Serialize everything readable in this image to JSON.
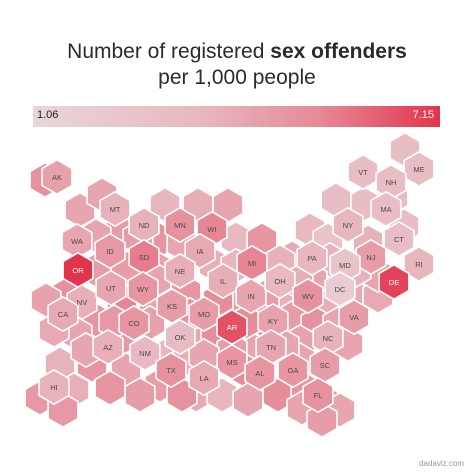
{
  "title": {
    "line1": "Number of registered",
    "line1_bold": "sex offenders",
    "line2": "per 1,000 people"
  },
  "legend": {
    "min": "1.06",
    "max": "7.15",
    "color_low": "#e9d6d9",
    "color_high": "#e3344d"
  },
  "credit": "dadaviz.com",
  "states": [
    {
      "code": "AK",
      "level": 0.33
    },
    {
      "code": "HI",
      "level": 0.22
    },
    {
      "code": "ME",
      "level": 0.15
    },
    {
      "code": "VT",
      "level": 0.15
    },
    {
      "code": "NH",
      "level": 0.15
    },
    {
      "code": "MT",
      "level": 0.22
    },
    {
      "code": "MA",
      "level": 0.15
    },
    {
      "code": "ND",
      "level": 0.22
    },
    {
      "code": "MN",
      "level": 0.42
    },
    {
      "code": "WI",
      "level": 0.5
    },
    {
      "code": "MI",
      "level": 0.5
    },
    {
      "code": "NY",
      "level": 0.2
    },
    {
      "code": "CT",
      "level": 0.15
    },
    {
      "code": "WA",
      "level": 0.3
    },
    {
      "code": "ID",
      "level": 0.38
    },
    {
      "code": "SD",
      "level": 0.55
    },
    {
      "code": "IA",
      "level": 0.28
    },
    {
      "code": "NJ",
      "level": 0.35
    },
    {
      "code": "PA",
      "level": 0.2
    },
    {
      "code": "RI",
      "level": 0.2
    },
    {
      "code": "OR",
      "level": 1.0
    },
    {
      "code": "WY",
      "level": 0.4
    },
    {
      "code": "NE",
      "level": 0.24
    },
    {
      "code": "IL",
      "level": 0.25
    },
    {
      "code": "IN",
      "level": 0.3
    },
    {
      "code": "OH",
      "level": 0.18
    },
    {
      "code": "MD",
      "level": 0.12
    },
    {
      "code": "DE",
      "level": 0.9
    },
    {
      "code": "NV",
      "level": 0.24
    },
    {
      "code": "UT",
      "level": 0.3
    },
    {
      "code": "KS",
      "level": 0.35
    },
    {
      "code": "MO",
      "level": 0.35
    },
    {
      "code": "KY",
      "level": 0.32
    },
    {
      "code": "WV",
      "level": 0.42
    },
    {
      "code": "DC",
      "level": 0.06
    },
    {
      "code": "CA",
      "level": 0.28
    },
    {
      "code": "CO",
      "level": 0.4
    },
    {
      "code": "OK",
      "level": 0.16
    },
    {
      "code": "AR",
      "level": 0.82
    },
    {
      "code": "TN",
      "level": 0.3
    },
    {
      "code": "VA",
      "level": 0.35
    },
    {
      "code": "AZ",
      "level": 0.24
    },
    {
      "code": "NM",
      "level": 0.18
    },
    {
      "code": "MS",
      "level": 0.4
    },
    {
      "code": "AL",
      "level": 0.4
    },
    {
      "code": "NC",
      "level": 0.22
    },
    {
      "code": "SC",
      "level": 0.35
    },
    {
      "code": "TX",
      "level": 0.42
    },
    {
      "code": "LA",
      "level": 0.28
    },
    {
      "code": "GA",
      "level": 0.4
    },
    {
      "code": "FL",
      "level": 0.42
    }
  ],
  "fillers": [
    {
      "key": "f1",
      "level": 0.15
    },
    {
      "key": "f2",
      "level": 0.15
    },
    {
      "key": "f3",
      "level": 0.15
    },
    {
      "key": "f4",
      "level": 0.15
    },
    {
      "key": "f5",
      "level": 0.15
    },
    {
      "key": "f6",
      "level": 0.3
    },
    {
      "key": "f7",
      "level": 0.3
    },
    {
      "key": "f8",
      "level": 0.42
    },
    {
      "key": "f9",
      "level": 0.35
    },
    {
      "key": "f10",
      "level": 0.2
    },
    {
      "key": "f11",
      "level": 0.25
    },
    {
      "key": "f12",
      "level": 0.3
    },
    {
      "key": "f13",
      "level": 0.18
    },
    {
      "key": "f14",
      "level": 0.4
    },
    {
      "key": "f15",
      "level": 0.4
    },
    {
      "key": "f16",
      "level": 0.35
    },
    {
      "key": "f17",
      "level": 0.35
    },
    {
      "key": "f18",
      "level": 0.32
    },
    {
      "key": "f19",
      "level": 0.18
    },
    {
      "key": "f20",
      "level": 0.12
    },
    {
      "key": "f21",
      "level": 0.28
    },
    {
      "key": "f22",
      "level": 0.24
    },
    {
      "key": "f23",
      "level": 0.2
    },
    {
      "key": "f24",
      "level": 0.42
    },
    {
      "key": "f25",
      "level": 0.5
    },
    {
      "key": "f26",
      "level": 0.3
    },
    {
      "key": "f27",
      "level": 0.4
    },
    {
      "key": "f28",
      "level": 0.3
    },
    {
      "key": "f29",
      "level": 0.35
    },
    {
      "key": "f30",
      "level": 0.25
    },
    {
      "key": "f31",
      "level": 0.24
    },
    {
      "key": "f32",
      "level": 0.28
    },
    {
      "key": "f33",
      "level": 0.28
    },
    {
      "key": "f34",
      "level": 0.4
    },
    {
      "key": "f35",
      "level": 0.33
    },
    {
      "key": "f36",
      "level": 0.45
    },
    {
      "key": "f37",
      "level": 0.35
    },
    {
      "key": "f38",
      "level": 0.42
    },
    {
      "key": "f39",
      "level": 0.3
    },
    {
      "key": "f40",
      "level": 0.3
    },
    {
      "key": "f41",
      "level": 0.38
    },
    {
      "key": "f42",
      "level": 0.3
    },
    {
      "key": "f43",
      "level": 0.3
    },
    {
      "key": "f44",
      "level": 0.45
    },
    {
      "key": "f45",
      "level": 0.32
    },
    {
      "key": "f46",
      "level": 0.4
    },
    {
      "key": "f47",
      "level": 0.3
    },
    {
      "key": "f48",
      "level": 0.35
    },
    {
      "key": "f49",
      "level": 0.28
    },
    {
      "key": "f50",
      "level": 0.2
    },
    {
      "key": "f51",
      "level": 0.22
    },
    {
      "key": "f52",
      "level": 0.24
    },
    {
      "key": "f53",
      "level": 0.45
    },
    {
      "key": "f54",
      "level": 0.45
    },
    {
      "key": "f55",
      "level": 0.4
    },
    {
      "key": "f56",
      "level": 0.35
    },
    {
      "key": "f57",
      "level": 0.3
    },
    {
      "key": "f58",
      "level": 0.38
    },
    {
      "key": "f59",
      "level": 0.38
    },
    {
      "key": "f60",
      "level": 0.3
    },
    {
      "key": "f61",
      "level": 0.42
    },
    {
      "key": "f62",
      "level": 0.35
    },
    {
      "key": "f63",
      "level": 0.4
    },
    {
      "key": "f64",
      "level": 0.3
    },
    {
      "key": "f65",
      "level": 0.38
    },
    {
      "key": "f66",
      "level": 0.2
    },
    {
      "key": "f67",
      "level": 0.25
    },
    {
      "key": "f68",
      "level": 0.28
    },
    {
      "key": "f69",
      "level": 0.32
    },
    {
      "key": "f70",
      "level": 0.3
    },
    {
      "key": "f71",
      "level": 0.35
    },
    {
      "key": "f72",
      "level": 0.3
    },
    {
      "key": "f73",
      "level": 0.22
    },
    {
      "key": "f74",
      "level": 0.22
    },
    {
      "key": "f75",
      "level": 0.3
    },
    {
      "key": "f76",
      "level": 0.22
    },
    {
      "key": "f77",
      "level": 0.3
    },
    {
      "key": "f78",
      "level": 0.22
    },
    {
      "key": "f79",
      "level": 0.3
    },
    {
      "key": "f80",
      "level": 0.35
    },
    {
      "key": "f81",
      "level": 0.35
    },
    {
      "key": "f82",
      "level": 0.3
    },
    {
      "key": "f83",
      "level": 0.3
    },
    {
      "key": "f84",
      "level": 0.42
    },
    {
      "key": "f85",
      "level": 0.45
    },
    {
      "key": "f86",
      "level": 0.3
    },
    {
      "key": "f87",
      "level": 0.25
    },
    {
      "key": "f88",
      "level": 0.3
    },
    {
      "key": "f89",
      "level": 0.3
    },
    {
      "key": "f90",
      "level": 0.35
    }
  ]
}
